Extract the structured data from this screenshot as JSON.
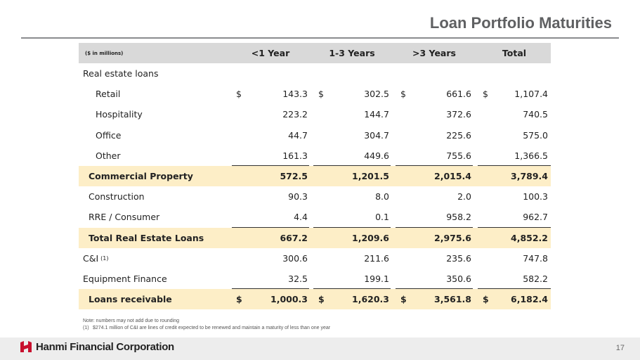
{
  "title": "Loan Portfolio Maturities",
  "table": {
    "units": "($ in millions)",
    "columns": [
      "<1 Year",
      "1-3 Years",
      ">3 Years",
      "Total"
    ],
    "rows": [
      {
        "label": "Real estate loans",
        "values": [
          "",
          "",
          "",
          ""
        ],
        "indent": 0,
        "highlight": false,
        "currency": false
      },
      {
        "label": "Retail",
        "values": [
          "143.3",
          "302.5",
          "661.6",
          "1,107.4"
        ],
        "indent": 1,
        "highlight": false,
        "currency": true
      },
      {
        "label": "Hospitality",
        "values": [
          "223.2",
          "144.7",
          "372.6",
          "740.5"
        ],
        "indent": 1,
        "highlight": false,
        "currency": false
      },
      {
        "label": "Office",
        "values": [
          "44.7",
          "304.7",
          "225.6",
          "575.0"
        ],
        "indent": 1,
        "highlight": false,
        "currency": false
      },
      {
        "label": "Other",
        "values": [
          "161.3",
          "449.6",
          "755.6",
          "1,366.5"
        ],
        "indent": 1,
        "highlight": false,
        "currency": false,
        "underline": true
      },
      {
        "label": "Commercial Property",
        "values": [
          "572.5",
          "1,201.5",
          "2,015.4",
          "3,789.4"
        ],
        "indent": 2,
        "highlight": true,
        "currency": false
      },
      {
        "label": "Construction",
        "values": [
          "90.3",
          "8.0",
          "2.0",
          "100.3"
        ],
        "indent": 2,
        "highlight": false,
        "currency": false
      },
      {
        "label": "RRE / Consumer",
        "values": [
          "4.4",
          "0.1",
          "958.2",
          "962.7"
        ],
        "indent": 2,
        "highlight": false,
        "currency": false,
        "underline": true
      },
      {
        "label": "Total Real Estate Loans",
        "values": [
          "667.2",
          "1,209.6",
          "2,975.6",
          "4,852.2"
        ],
        "indent": 2,
        "highlight": true,
        "currency": false
      },
      {
        "label": "C&I",
        "footnote": "(1)",
        "values": [
          "300.6",
          "211.6",
          "235.6",
          "747.8"
        ],
        "indent": 0,
        "highlight": false,
        "currency": false
      },
      {
        "label": "Equipment Finance",
        "values": [
          "32.5",
          "199.1",
          "350.6",
          "582.2"
        ],
        "indent": 0,
        "highlight": false,
        "currency": false,
        "underline": true
      },
      {
        "label": "Loans receivable",
        "values": [
          "1,000.3",
          "1,620.3",
          "3,561.8",
          "6,182.4"
        ],
        "indent": 2,
        "highlight": true,
        "currency": true
      }
    ],
    "currency_symbol": "$"
  },
  "notes": {
    "line1": "Note: numbers may not add due to rounding",
    "line2_marker": "(1)",
    "line2_text": "$274.1 million of C&I are lines of credit expected to be renewed and maintain a maturity of less than one year"
  },
  "footer": {
    "company": "Hanmi Financial Corporation",
    "page_number": "17",
    "logo_color": "#c8102e"
  }
}
